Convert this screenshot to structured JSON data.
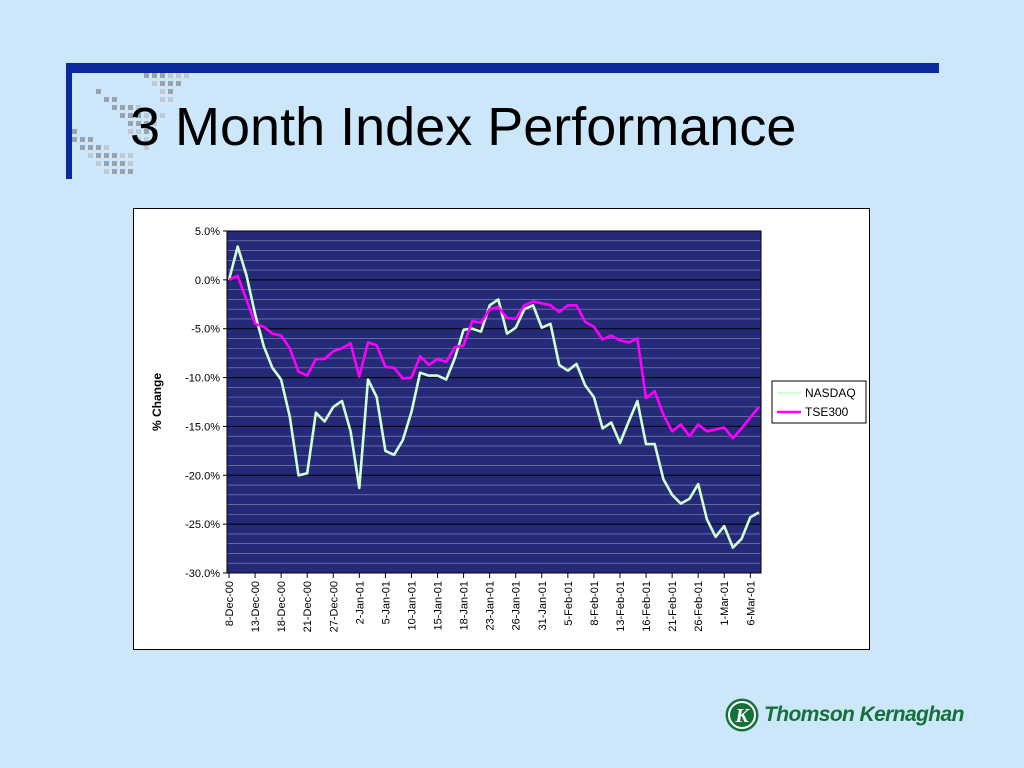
{
  "slide": {
    "title": "3 Month Index Performance",
    "logo_text": "Thomson Kernaghan",
    "logo_initial": "K"
  },
  "colors": {
    "background": "#cce6fa",
    "rule": "#0b2a9e",
    "plot_area": "#242a78",
    "nasdaq": "#d2ffd2",
    "tse300": "#ff00ff",
    "logo_green": "#15713a"
  },
  "chart_data": {
    "type": "line",
    "ylabel": "% Change",
    "ylim": [
      -30,
      5
    ],
    "ytick_step": 5,
    "y_tick_labels": [
      "5.0%",
      "0.0%",
      "-5.0%",
      "-10.0%",
      "-15.0%",
      "-20.0%",
      "-25.0%",
      "-30.0%"
    ],
    "grid": true,
    "legend_position": "right",
    "x_tick_labels": [
      "8-Dec-00",
      "13-Dec-00",
      "18-Dec-00",
      "21-Dec-00",
      "27-Dec-00",
      "2-Jan-01",
      "5-Jan-01",
      "10-Jan-01",
      "15-Jan-01",
      "18-Jan-01",
      "23-Jan-01",
      "26-Jan-01",
      "31-Jan-01",
      "5-Feb-01",
      "8-Feb-01",
      "13-Feb-01",
      "16-Feb-01",
      "21-Feb-01",
      "26-Feb-01",
      "1-Mar-01",
      "6-Mar-01"
    ],
    "x_tick_step": 3,
    "series": [
      {
        "name": "NASDAQ",
        "color": "#d2ffd2",
        "values": [
          0.0,
          3.4,
          0.5,
          -3.5,
          -6.8,
          -9.0,
          -10.2,
          -14.0,
          -20.0,
          -19.8,
          -13.6,
          -14.5,
          -13.0,
          -12.4,
          -15.5,
          -21.3,
          -10.2,
          -12.0,
          -17.5,
          -17.9,
          -16.4,
          -13.5,
          -9.5,
          -9.8,
          -9.8,
          -10.2,
          -8.0,
          -5.1,
          -5.0,
          -5.3,
          -2.6,
          -2.0,
          -5.5,
          -4.9,
          -3.0,
          -2.6,
          -4.9,
          -4.5,
          -8.7,
          -9.3,
          -8.6,
          -10.8,
          -12.0,
          -15.2,
          -14.6,
          -16.7,
          -14.5,
          -12.4,
          -16.8,
          -16.8,
          -20.4,
          -22.0,
          -22.9,
          -22.4,
          -20.9,
          -24.5,
          -26.3,
          -25.2,
          -27.4,
          -26.5,
          -24.3,
          -23.8
        ]
      },
      {
        "name": "TSE300",
        "color": "#ff00ff",
        "values": [
          0.0,
          0.4,
          -2.0,
          -4.5,
          -4.8,
          -5.5,
          -5.7,
          -7.0,
          -9.4,
          -9.8,
          -8.1,
          -8.1,
          -7.3,
          -7.0,
          -6.5,
          -9.9,
          -6.4,
          -6.7,
          -8.9,
          -9.0,
          -10.1,
          -10.0,
          -7.8,
          -8.7,
          -8.1,
          -8.4,
          -6.9,
          -6.7,
          -4.2,
          -4.4,
          -3.0,
          -2.8,
          -3.9,
          -4.0,
          -2.6,
          -2.2,
          -2.4,
          -2.6,
          -3.3,
          -2.6,
          -2.6,
          -4.3,
          -4.8,
          -6.1,
          -5.7,
          -6.2,
          -6.4,
          -6.0,
          -12.1,
          -11.4,
          -13.8,
          -15.5,
          -14.8,
          -16.0,
          -14.8,
          -15.5,
          -15.3,
          -15.1,
          -16.2,
          -15.2,
          -14.1,
          -13.0
        ]
      }
    ]
  }
}
